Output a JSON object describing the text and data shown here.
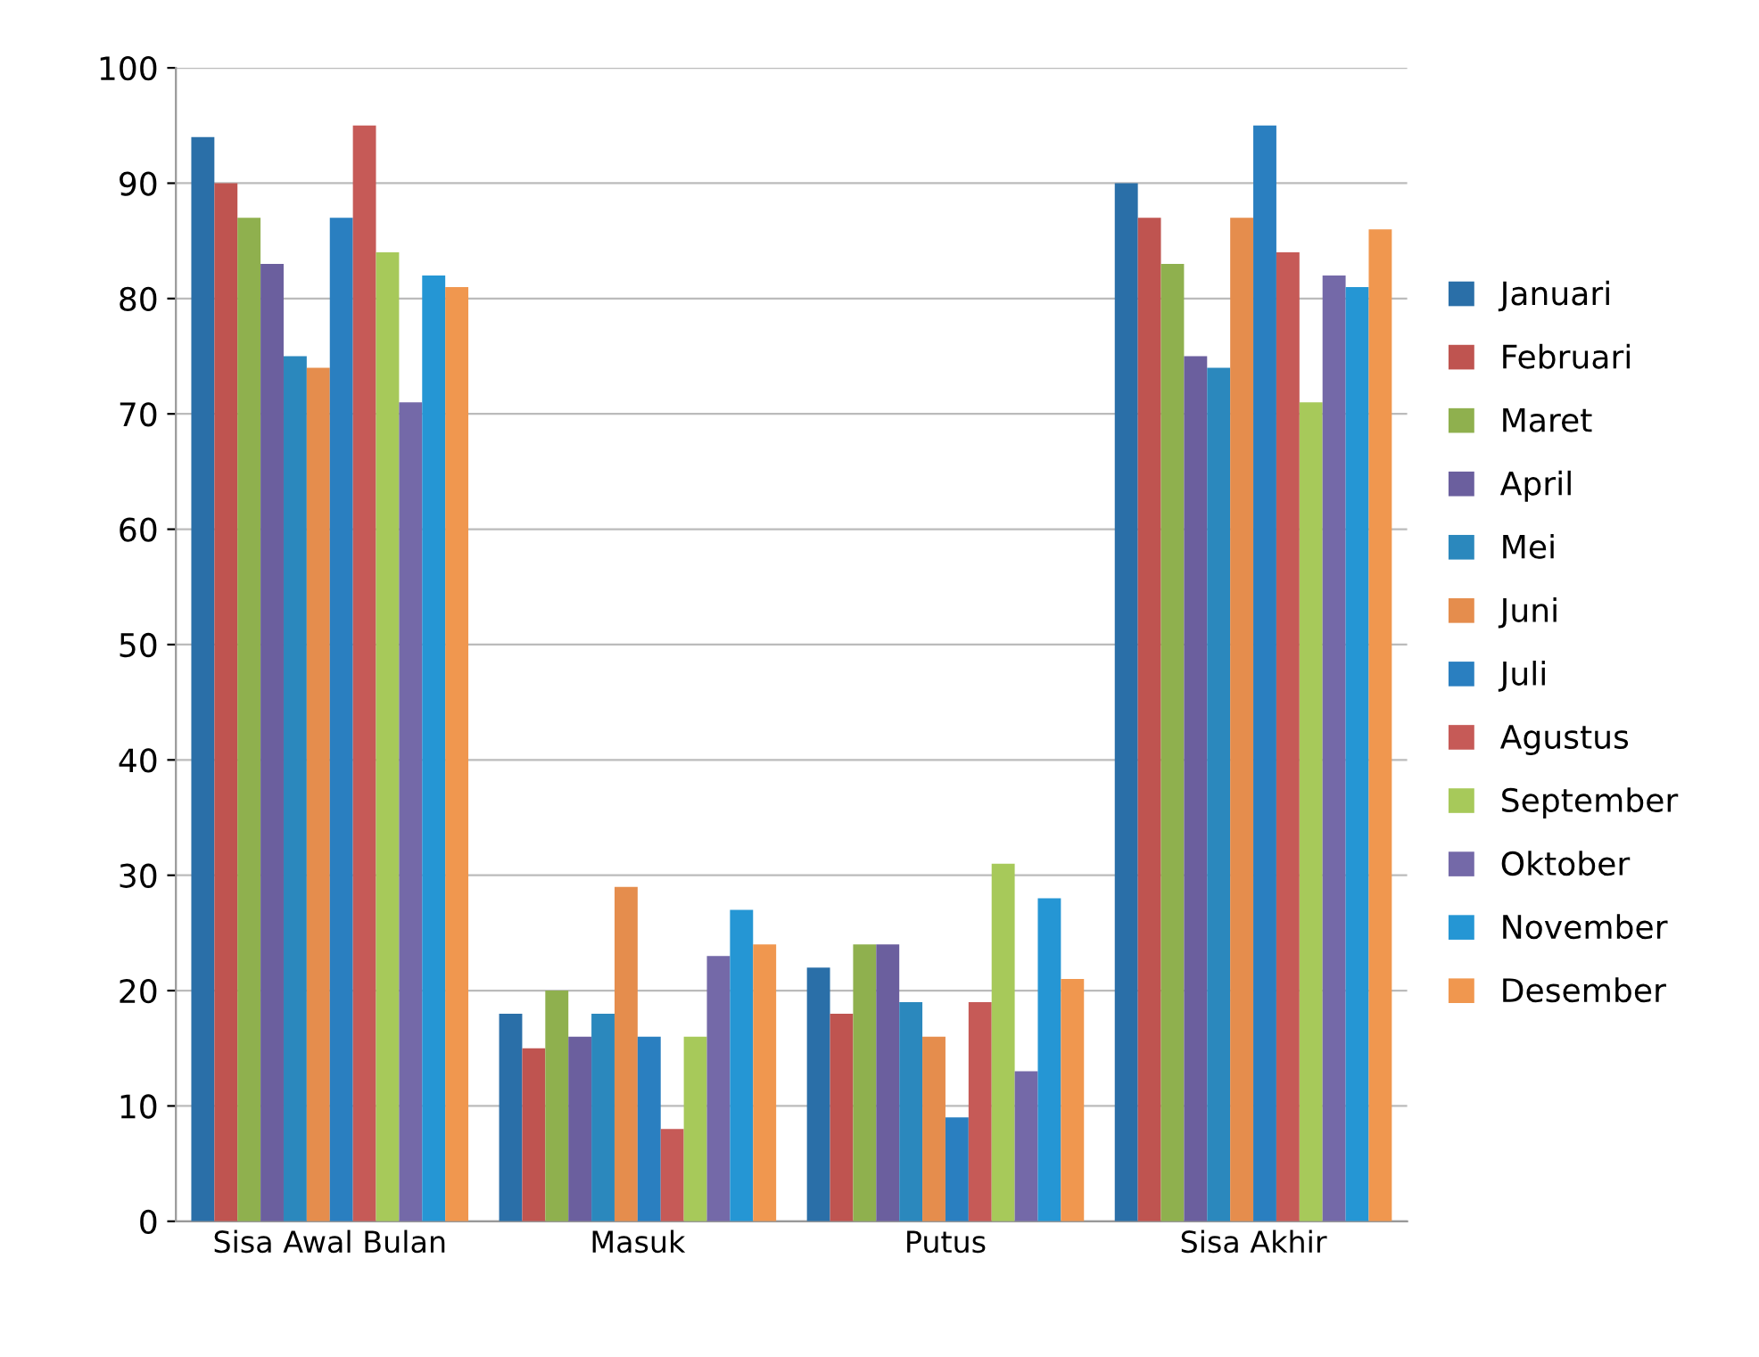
{
  "chart_data": {
    "type": "bar",
    "categories": [
      "Sisa Awal Bulan",
      "Masuk",
      "Putus",
      "Sisa Akhir"
    ],
    "series": [
      {
        "name": "Januari",
        "color": "#2a6fa8",
        "values": [
          94,
          18,
          22,
          90
        ]
      },
      {
        "name": "Februari",
        "color": "#bf5450",
        "values": [
          90,
          15,
          18,
          87
        ]
      },
      {
        "name": "Maret",
        "color": "#8fb04e",
        "values": [
          87,
          20,
          24,
          83
        ]
      },
      {
        "name": "April",
        "color": "#6b5f9e",
        "values": [
          83,
          16,
          24,
          75
        ]
      },
      {
        "name": "Mei",
        "color": "#2b88bd",
        "values": [
          75,
          18,
          19,
          74
        ]
      },
      {
        "name": "Juni",
        "color": "#e58d4d",
        "values": [
          74,
          29,
          16,
          87
        ]
      },
      {
        "name": "Juli",
        "color": "#2a7fc0",
        "values": [
          87,
          16,
          9,
          95
        ]
      },
      {
        "name": "Agustus",
        "color": "#c65a57",
        "values": [
          95,
          8,
          19,
          84
        ]
      },
      {
        "name": "September",
        "color": "#a7c95a",
        "values": [
          84,
          16,
          31,
          71
        ]
      },
      {
        "name": "Oktober",
        "color": "#7469a8",
        "values": [
          71,
          23,
          13,
          82
        ]
      },
      {
        "name": "November",
        "color": "#2596d4",
        "values": [
          82,
          27,
          28,
          81
        ]
      },
      {
        "name": "Desember",
        "color": "#f0974f",
        "values": [
          81,
          24,
          21,
          86
        ]
      }
    ],
    "ylim": [
      0,
      100
    ],
    "yticks": [
      0,
      10,
      20,
      30,
      40,
      50,
      60,
      70,
      80,
      90,
      100
    ],
    "grid": "y",
    "legend": "right"
  }
}
